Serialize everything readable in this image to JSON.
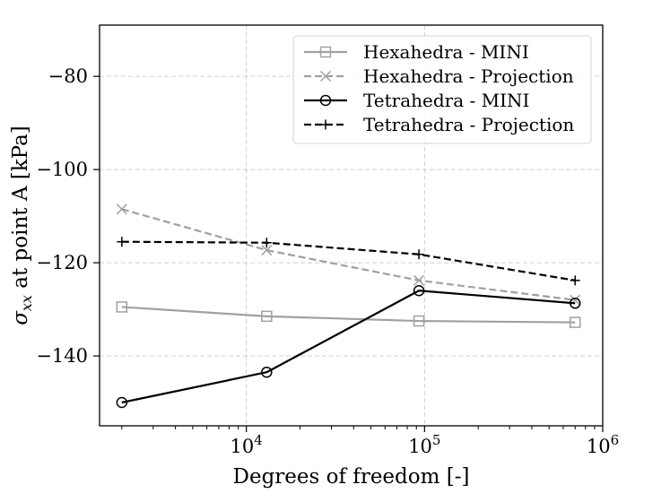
{
  "chart_data": {
    "type": "line",
    "xscale": "log",
    "xlim": [
      1500,
      1000000
    ],
    "ylim": [
      -155,
      -69
    ],
    "grid": true,
    "xlabel": "Degrees of freedom [-]",
    "ylabel_symbol": "σ",
    "ylabel_sub": "xx",
    "ylabel_rest": " at point A [kPa]",
    "xtick_values": [
      10000,
      100000,
      1000000
    ],
    "xtick_labels": [
      {
        "base": "10",
        "exp": "4"
      },
      {
        "base": "10",
        "exp": "5"
      },
      {
        "base": "10",
        "exp": "6"
      }
    ],
    "ytick_values": [
      -140,
      -120,
      -100,
      -80
    ],
    "ytick_labels": [
      "−140",
      "−120",
      "−100",
      "−80"
    ],
    "legend_position": "top-right",
    "series": [
      {
        "name": "Hexahedra - MINI",
        "color": "#a0a0a0",
        "dash": "solid",
        "marker": "square",
        "x": [
          2000,
          13000,
          93000,
          700000
        ],
        "y": [
          -129.5,
          -131.5,
          -132.5,
          -132.8
        ]
      },
      {
        "name": "Hexahedra - Projection",
        "color": "#a0a0a0",
        "dash": "dashed",
        "marker": "x",
        "x": [
          2000,
          13000,
          93000,
          700000
        ],
        "y": [
          -108.5,
          -117.3,
          -123.8,
          -128.0
        ]
      },
      {
        "name": "Tetrahedra - MINI",
        "color": "#000000",
        "dash": "solid",
        "marker": "circle",
        "x": [
          2000,
          13000,
          93000,
          700000
        ],
        "y": [
          -150.0,
          -143.5,
          -126.0,
          -128.7
        ]
      },
      {
        "name": "Tetrahedra - Projection",
        "color": "#000000",
        "dash": "dashed",
        "marker": "plus",
        "x": [
          2000,
          13000,
          93000,
          700000
        ],
        "y": [
          -115.5,
          -115.7,
          -118.2,
          -123.8
        ]
      }
    ]
  }
}
